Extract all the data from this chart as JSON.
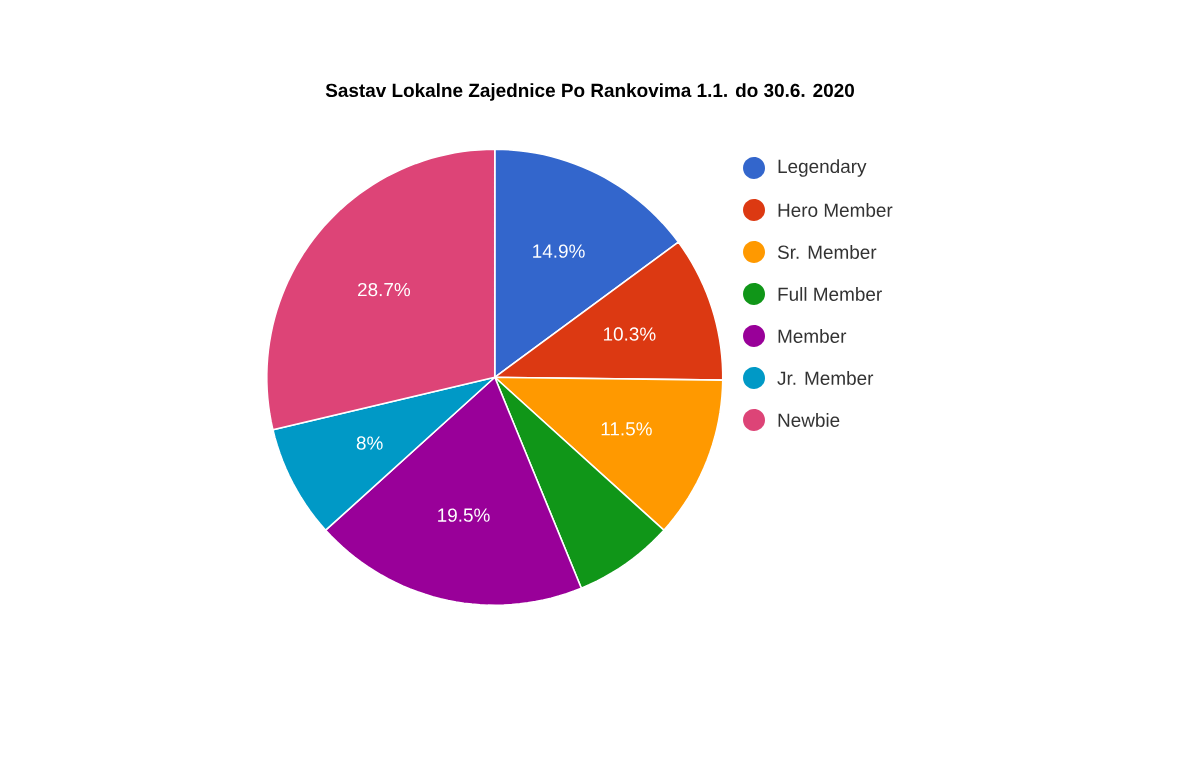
{
  "chart_data": {
    "type": "pie",
    "title": "Sastav Lokalne Zajednice Po Rankovima 1.1. do 30.6. 2020",
    "categories": [
      "Legendary",
      "Hero Member",
      "Sr. Member",
      "Full Member",
      "Member",
      "Jr. Member",
      "Newbie"
    ],
    "values": [
      14.9,
      10.3,
      11.5,
      7.1,
      19.5,
      8,
      28.7
    ],
    "value_labels": [
      "14.9%",
      "10.3%",
      "11.5%",
      null,
      "19.5%",
      "8%",
      "28.7%"
    ],
    "colors": [
      "#3366cc",
      "#dc3912",
      "#ff9900",
      "#109618",
      "#990099",
      "#0099c6",
      "#dd4477"
    ],
    "legend": "right"
  }
}
